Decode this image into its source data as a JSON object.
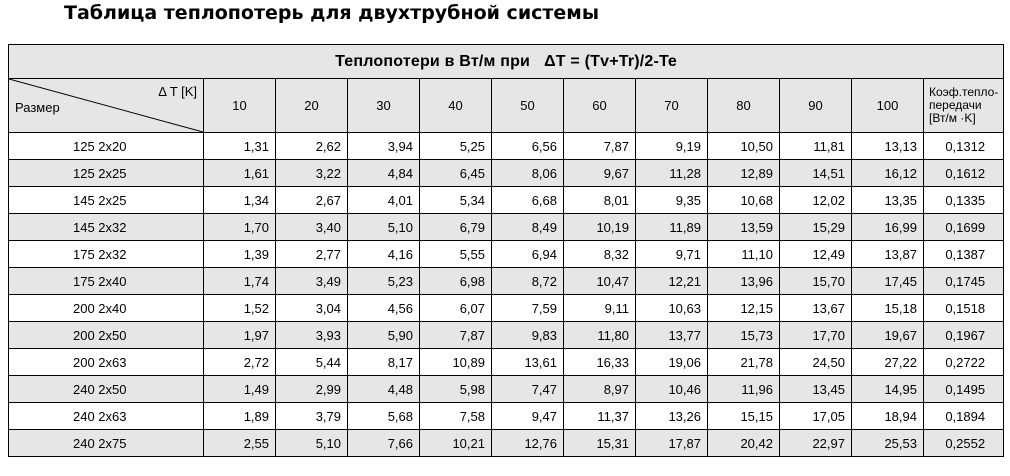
{
  "title": "Таблица теплопотерь для двухтрубной системы",
  "banner": {
    "label": "Теплопотери в Вт/м при",
    "formula": "ΔT = (Tv+Tr)/2-Te"
  },
  "header": {
    "delta_label": "Δ T [K]",
    "size_label": "Размер",
    "columns": [
      "10",
      "20",
      "30",
      "40",
      "50",
      "60",
      "70",
      "80",
      "90",
      "100"
    ],
    "coef_line1": "Коэф.тепло-",
    "coef_line2": "передачи",
    "coef_line3": "[Вт/м ·K]"
  },
  "rows": [
    {
      "size": "125 2x20",
      "values": [
        "1,31",
        "2,62",
        "3,94",
        "5,25",
        "6,56",
        "7,87",
        "9,19",
        "10,50",
        "11,81",
        "13,13"
      ],
      "k": "0,1312"
    },
    {
      "size": "125 2x25",
      "values": [
        "1,61",
        "3,22",
        "4,84",
        "6,45",
        "8,06",
        "9,67",
        "11,28",
        "12,89",
        "14,51",
        "16,12"
      ],
      "k": "0,1612"
    },
    {
      "size": "145 2x25",
      "values": [
        "1,34",
        "2,67",
        "4,01",
        "5,34",
        "6,68",
        "8,01",
        "9,35",
        "10,68",
        "12,02",
        "13,35"
      ],
      "k": "0,1335"
    },
    {
      "size": "145 2x32",
      "values": [
        "1,70",
        "3,40",
        "5,10",
        "6,79",
        "8,49",
        "10,19",
        "11,89",
        "13,59",
        "15,29",
        "16,99"
      ],
      "k": "0,1699"
    },
    {
      "size": "175 2x32",
      "values": [
        "1,39",
        "2,77",
        "4,16",
        "5,55",
        "6,94",
        "8,32",
        "9,71",
        "11,10",
        "12,49",
        "13,87"
      ],
      "k": "0,1387"
    },
    {
      "size": "175 2x40",
      "values": [
        "1,74",
        "3,49",
        "5,23",
        "6,98",
        "8,72",
        "10,47",
        "12,21",
        "13,96",
        "15,70",
        "17,45"
      ],
      "k": "0,1745"
    },
    {
      "size": "200 2x40",
      "values": [
        "1,52",
        "3,04",
        "4,56",
        "6,07",
        "7,59",
        "9,11",
        "10,63",
        "12,15",
        "13,67",
        "15,18"
      ],
      "k": "0,1518"
    },
    {
      "size": "200 2x50",
      "values": [
        "1,97",
        "3,93",
        "5,90",
        "7,87",
        "9,83",
        "11,80",
        "13,77",
        "15,73",
        "17,70",
        "19,67"
      ],
      "k": "0,1967"
    },
    {
      "size": "200 2x63",
      "values": [
        "2,72",
        "5,44",
        "8,17",
        "10,89",
        "13,61",
        "16,33",
        "19,06",
        "21,78",
        "24,50",
        "27,22"
      ],
      "k": "0,2722"
    },
    {
      "size": "240 2x50",
      "values": [
        "1,49",
        "2,99",
        "4,48",
        "5,98",
        "7,47",
        "8,97",
        "10,46",
        "11,96",
        "13,45",
        "14,95"
      ],
      "k": "0,1495"
    },
    {
      "size": "240 2x63",
      "values": [
        "1,89",
        "3,79",
        "5,68",
        "7,58",
        "9,47",
        "11,37",
        "13,26",
        "15,15",
        "17,05",
        "18,94"
      ],
      "k": "0,1894"
    },
    {
      "size": "240 2x75",
      "values": [
        "2,55",
        "5,10",
        "7,66",
        "10,21",
        "12,76",
        "15,31",
        "17,87",
        "20,42",
        "22,97",
        "25,53"
      ],
      "k": "0,2552"
    }
  ]
}
